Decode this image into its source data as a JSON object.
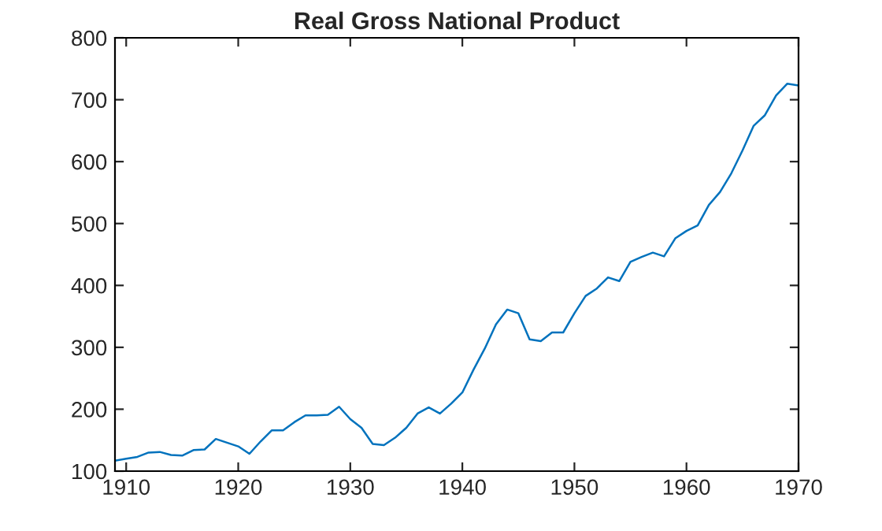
{
  "chart_data": {
    "type": "line",
    "title": "Real Gross National Product",
    "x": [
      1909,
      1910,
      1911,
      1912,
      1913,
      1914,
      1915,
      1916,
      1917,
      1918,
      1919,
      1920,
      1921,
      1922,
      1923,
      1924,
      1925,
      1926,
      1927,
      1928,
      1929,
      1930,
      1931,
      1932,
      1933,
      1934,
      1935,
      1936,
      1937,
      1938,
      1939,
      1940,
      1941,
      1942,
      1943,
      1944,
      1945,
      1946,
      1947,
      1948,
      1949,
      1950,
      1951,
      1952,
      1953,
      1954,
      1955,
      1956,
      1957,
      1958,
      1959,
      1960,
      1961,
      1962,
      1963,
      1964,
      1965,
      1966,
      1967,
      1968,
      1969,
      1970
    ],
    "series": [
      {
        "color": "#0072bd",
        "values": [
          117,
          120,
          123,
          130,
          131,
          126,
          125,
          134,
          135,
          152,
          146,
          140,
          128,
          148,
          166,
          166,
          179,
          190,
          190,
          191,
          204,
          184,
          170,
          144,
          142,
          154,
          170,
          193,
          203,
          193,
          209,
          227,
          264,
          298,
          337,
          361,
          355,
          313,
          310,
          324,
          324,
          355,
          383,
          395,
          413,
          407,
          438,
          446,
          453,
          447,
          476,
          488,
          497,
          530,
          551,
          581,
          618,
          658,
          675,
          707,
          726,
          723
        ]
      }
    ],
    "xlim": [
      1909,
      1970
    ],
    "xticks": [
      1910,
      1920,
      1930,
      1940,
      1950,
      1960,
      1970
    ],
    "ylim": [
      100,
      800
    ],
    "yticks": [
      100,
      200,
      300,
      400,
      500,
      600,
      700,
      800
    ],
    "grid": false,
    "legend": false,
    "marker": "none",
    "line_style": "solid"
  }
}
